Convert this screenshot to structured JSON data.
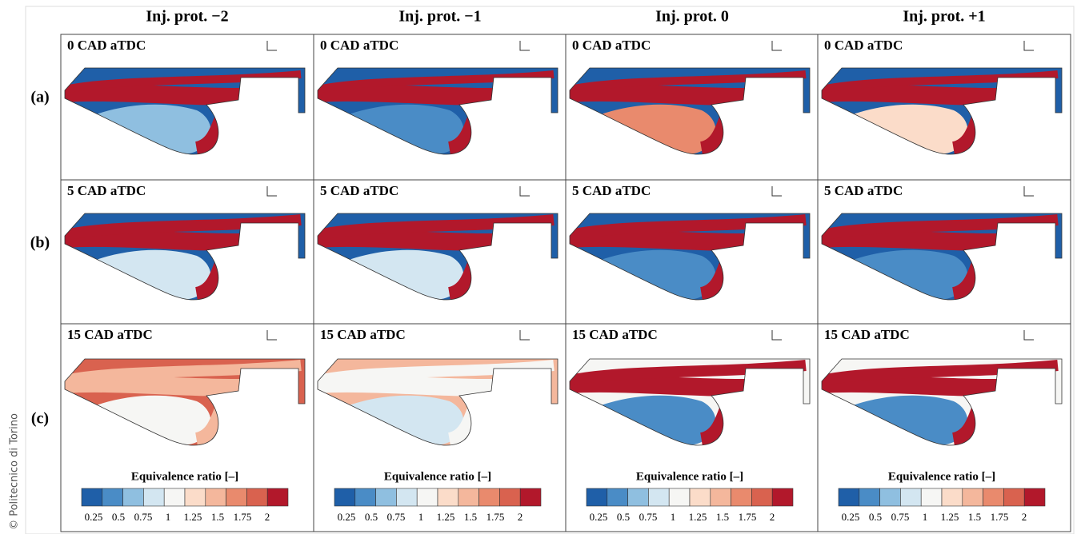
{
  "column_headers": [
    "Inj. prot. −2",
    "Inj. prot. −1",
    "Inj. prot. 0",
    "Inj. prot. +1"
  ],
  "row_labels": [
    "(a)",
    "(b)",
    "(c)"
  ],
  "panels": [
    [
      "0 CAD aTDC",
      "0 CAD aTDC",
      "0 CAD aTDC",
      "0 CAD aTDC"
    ],
    [
      "5 CAD aTDC",
      "5 CAD aTDC",
      "5 CAD aTDC",
      "5 CAD aTDC"
    ],
    [
      "15 CAD aTDC",
      "15 CAD aTDC",
      "15 CAD aTDC",
      "15 CAD aTDC"
    ]
  ],
  "colorbar": {
    "title": "Equivalence ratio [–]",
    "ticks": [
      "0.25",
      "0.5",
      "0.75",
      "1",
      "1.25",
      "1.5",
      "1.75",
      "2"
    ]
  },
  "credit": "© Politecnico di Torino"
}
